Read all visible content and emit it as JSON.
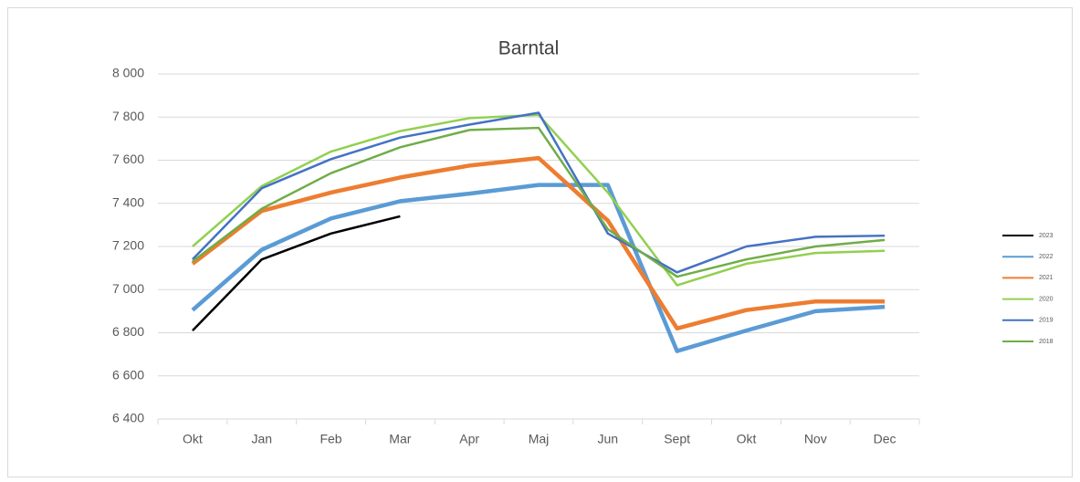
{
  "chart_data": {
    "type": "line",
    "title": "Barntal",
    "categories": [
      "Okt",
      "Jan",
      "Feb",
      "Mar",
      "Apr",
      "Maj",
      "Jun",
      "Sept",
      "Okt",
      "Nov",
      "Dec"
    ],
    "series": [
      {
        "name": "2023",
        "color": "#000000",
        "width": 2.5,
        "values": [
          6810,
          7140,
          7260,
          7340,
          null,
          null,
          null,
          null,
          null,
          null,
          null
        ]
      },
      {
        "name": "2022",
        "color": "#5b9bd5",
        "width": 4.5,
        "values": [
          6905,
          7185,
          7330,
          7410,
          7445,
          7485,
          7485,
          6715,
          6810,
          6900,
          6920
        ]
      },
      {
        "name": "2021",
        "color": "#ed7d31",
        "width": 4.5,
        "values": [
          7120,
          7365,
          7450,
          7520,
          7575,
          7610,
          7320,
          6820,
          6905,
          6945,
          6945
        ]
      },
      {
        "name": "2020",
        "color": "#92d050",
        "width": 2.5,
        "values": [
          7200,
          7480,
          7640,
          7735,
          7795,
          7810,
          7450,
          7020,
          7120,
          7170,
          7180
        ]
      },
      {
        "name": "2019",
        "color": "#4472c4",
        "width": 2.5,
        "values": [
          7140,
          7470,
          7605,
          7705,
          7765,
          7820,
          7260,
          7080,
          7200,
          7245,
          7250
        ]
      },
      {
        "name": "2018",
        "color": "#70ad47",
        "width": 2.5,
        "values": [
          7130,
          7375,
          7540,
          7660,
          7740,
          7750,
          7280,
          7060,
          7140,
          7200,
          7230
        ]
      }
    ],
    "ylim": [
      6400,
      8000
    ],
    "yticks": [
      {
        "value": 6400,
        "label": "6 400"
      },
      {
        "value": 6600,
        "label": "6 600"
      },
      {
        "value": 6800,
        "label": "6 800"
      },
      {
        "value": 7000,
        "label": "7 000"
      },
      {
        "value": 7200,
        "label": "7 200"
      },
      {
        "value": 7400,
        "label": "7 400"
      },
      {
        "value": 7600,
        "label": "7 600"
      },
      {
        "value": 7800,
        "label": "7 800"
      },
      {
        "value": 8000,
        "label": "8 000"
      }
    ],
    "grid": true,
    "legend": "right"
  }
}
